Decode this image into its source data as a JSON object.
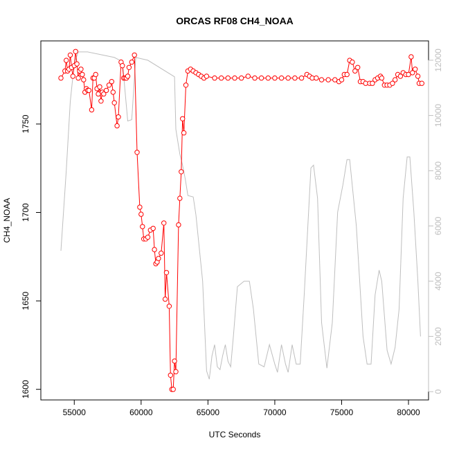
{
  "chart_data": {
    "type": "line",
    "title": "ORCAS RF08 CH4_NOAA",
    "xlabel": "UTC Seconds",
    "ylabel": "CH4_NOAA",
    "xlim": [
      52500,
      81500
    ],
    "ylim": [
      1594,
      1797
    ],
    "y2lim": [
      -300,
      12700
    ],
    "x_ticks": [
      55000,
      60000,
      65000,
      70000,
      75000,
      80000
    ],
    "y_ticks": [
      1600,
      1650,
      1700,
      1750
    ],
    "y2_ticks": [
      0,
      2000,
      4000,
      6000,
      8000,
      10000,
      12000
    ],
    "colors": {
      "primary": "#ff0000",
      "secondary": "#bebebe",
      "axis": "#000000",
      "right_axis": "#bebebe"
    },
    "series": [
      {
        "axis": "left",
        "style": "line+points",
        "points": [
          [
            54000,
            1776
          ],
          [
            54300,
            1780
          ],
          [
            54400,
            1786
          ],
          [
            54500,
            1780
          ],
          [
            54600,
            1781
          ],
          [
            54700,
            1789
          ],
          [
            54800,
            1782
          ],
          [
            54900,
            1777
          ],
          [
            55000,
            1783
          ],
          [
            55100,
            1791
          ],
          [
            55200,
            1784
          ],
          [
            55300,
            1776
          ],
          [
            55400,
            1780
          ],
          [
            55500,
            1781
          ],
          [
            55600,
            1778
          ],
          [
            55700,
            1775
          ],
          [
            55800,
            1768
          ],
          [
            55900,
            1770
          ],
          [
            56000,
            1769
          ],
          [
            56100,
            1769
          ],
          [
            56300,
            1758
          ],
          [
            56400,
            1776
          ],
          [
            56500,
            1776
          ],
          [
            56600,
            1778
          ],
          [
            56700,
            1770
          ],
          [
            56800,
            1767
          ],
          [
            56900,
            1771
          ],
          [
            57000,
            1763
          ],
          [
            57100,
            1768
          ],
          [
            57200,
            1767
          ],
          [
            57400,
            1769
          ],
          [
            57600,
            1772
          ],
          [
            57800,
            1774
          ],
          [
            57900,
            1768
          ],
          [
            58000,
            1762
          ],
          [
            58200,
            1749
          ],
          [
            58300,
            1754
          ],
          [
            58500,
            1785
          ],
          [
            58600,
            1783
          ],
          [
            58700,
            1776
          ],
          [
            58800,
            1776
          ],
          [
            58900,
            1776
          ],
          [
            59000,
            1777
          ],
          [
            59100,
            1782
          ],
          [
            59300,
            1785
          ],
          [
            59500,
            1789
          ],
          [
            59700,
            1734
          ],
          [
            59900,
            1703
          ],
          [
            60000,
            1699
          ],
          [
            60100,
            1692
          ],
          [
            60200,
            1685
          ],
          [
            60350,
            1685
          ],
          [
            60500,
            1686
          ],
          [
            60700,
            1690
          ],
          [
            60900,
            1691
          ],
          [
            61000,
            1679
          ],
          [
            61100,
            1671
          ],
          [
            61200,
            1672
          ],
          [
            61300,
            1674
          ],
          [
            61500,
            1677
          ],
          [
            61700,
            1694
          ],
          [
            61800,
            1651
          ],
          [
            61900,
            1666
          ],
          [
            62100,
            1647
          ],
          [
            62200,
            1608
          ],
          [
            62300,
            1600
          ],
          [
            62400,
            1600
          ],
          [
            62500,
            1616
          ],
          [
            62600,
            1610
          ],
          [
            62800,
            1693
          ],
          [
            62900,
            1708
          ],
          [
            63000,
            1723
          ],
          [
            63100,
            1753
          ],
          [
            63200,
            1745
          ],
          [
            63350,
            1772
          ],
          [
            63500,
            1780
          ],
          [
            63700,
            1781
          ],
          [
            63900,
            1780
          ],
          [
            64100,
            1779
          ],
          [
            64300,
            1778
          ],
          [
            64500,
            1777
          ],
          [
            64700,
            1776
          ],
          [
            64900,
            1777
          ],
          [
            65500,
            1776
          ],
          [
            66000,
            1776
          ],
          [
            66500,
            1776
          ],
          [
            67000,
            1776
          ],
          [
            67500,
            1776
          ],
          [
            68000,
            1777
          ],
          [
            68500,
            1776
          ],
          [
            69000,
            1776
          ],
          [
            69500,
            1776
          ],
          [
            70000,
            1776
          ],
          [
            70500,
            1776
          ],
          [
            71000,
            1776
          ],
          [
            71500,
            1776
          ],
          [
            72000,
            1776
          ],
          [
            72400,
            1778
          ],
          [
            72600,
            1777
          ],
          [
            72800,
            1776
          ],
          [
            73100,
            1776
          ],
          [
            73500,
            1775
          ],
          [
            74000,
            1775
          ],
          [
            74500,
            1775
          ],
          [
            74800,
            1774
          ],
          [
            75000,
            1775
          ],
          [
            75200,
            1778
          ],
          [
            75400,
            1778
          ],
          [
            75600,
            1786
          ],
          [
            75800,
            1785
          ],
          [
            76000,
            1780
          ],
          [
            76200,
            1782
          ],
          [
            76400,
            1774
          ],
          [
            76600,
            1774
          ],
          [
            76800,
            1773
          ],
          [
            77100,
            1773
          ],
          [
            77300,
            1773
          ],
          [
            77500,
            1775
          ],
          [
            77700,
            1776
          ],
          [
            77900,
            1777
          ],
          [
            78000,
            1776
          ],
          [
            78200,
            1772
          ],
          [
            78400,
            1772
          ],
          [
            78600,
            1772
          ],
          [
            78800,
            1773
          ],
          [
            79000,
            1775
          ],
          [
            79200,
            1778
          ],
          [
            79400,
            1777
          ],
          [
            79600,
            1779
          ],
          [
            79800,
            1778
          ],
          [
            80000,
            1778
          ],
          [
            80200,
            1788
          ],
          [
            80300,
            1779
          ],
          [
            80500,
            1781
          ],
          [
            80700,
            1777
          ],
          [
            80800,
            1773
          ],
          [
            81000,
            1773
          ]
        ]
      },
      {
        "axis": "right",
        "style": "line",
        "points": [
          [
            54000,
            5100
          ],
          [
            54400,
            8000
          ],
          [
            54700,
            10500
          ],
          [
            55000,
            11900
          ],
          [
            55300,
            12300
          ],
          [
            56000,
            12300
          ],
          [
            57000,
            12200
          ],
          [
            58000,
            12100
          ],
          [
            58600,
            11950
          ],
          [
            59000,
            9800
          ],
          [
            59300,
            9850
          ],
          [
            59600,
            12100
          ],
          [
            60500,
            12000
          ],
          [
            62500,
            11400
          ],
          [
            62600,
            9500
          ],
          [
            62900,
            8600
          ],
          [
            63100,
            8200
          ],
          [
            63300,
            7700
          ],
          [
            63500,
            7100
          ],
          [
            63900,
            7050
          ],
          [
            64100,
            6400
          ],
          [
            64600,
            4000
          ],
          [
            64900,
            750
          ],
          [
            65100,
            450
          ],
          [
            65300,
            1300
          ],
          [
            65500,
            1700
          ],
          [
            65700,
            900
          ],
          [
            65900,
            800
          ],
          [
            66100,
            1300
          ],
          [
            66300,
            1700
          ],
          [
            66500,
            1100
          ],
          [
            66700,
            900
          ],
          [
            66900,
            2000
          ],
          [
            67200,
            3800
          ],
          [
            67700,
            4000
          ],
          [
            68100,
            4000
          ],
          [
            68400,
            3000
          ],
          [
            68800,
            1000
          ],
          [
            69200,
            900
          ],
          [
            69600,
            1700
          ],
          [
            70000,
            1000
          ],
          [
            70200,
            700
          ],
          [
            70500,
            1700
          ],
          [
            70800,
            1000
          ],
          [
            71000,
            700
          ],
          [
            71300,
            1700
          ],
          [
            71600,
            1000
          ],
          [
            71900,
            1000
          ],
          [
            72200,
            3500
          ],
          [
            72700,
            8100
          ],
          [
            72900,
            8200
          ],
          [
            73200,
            7000
          ],
          [
            73500,
            2500
          ],
          [
            73900,
            850
          ],
          [
            74300,
            2500
          ],
          [
            74700,
            6500
          ],
          [
            75100,
            7500
          ],
          [
            75400,
            8400
          ],
          [
            75600,
            8400
          ],
          [
            76100,
            6000
          ],
          [
            76600,
            2000
          ],
          [
            76900,
            1000
          ],
          [
            77200,
            1000
          ],
          [
            77500,
            3500
          ],
          [
            77800,
            4400
          ],
          [
            78000,
            4000
          ],
          [
            78400,
            1500
          ],
          [
            78700,
            1000
          ],
          [
            79000,
            1600
          ],
          [
            79300,
            3000
          ],
          [
            79600,
            7000
          ],
          [
            79900,
            8500
          ],
          [
            80100,
            8500
          ],
          [
            80400,
            6500
          ],
          [
            80700,
            4000
          ],
          [
            80900,
            2000
          ]
        ]
      }
    ]
  }
}
